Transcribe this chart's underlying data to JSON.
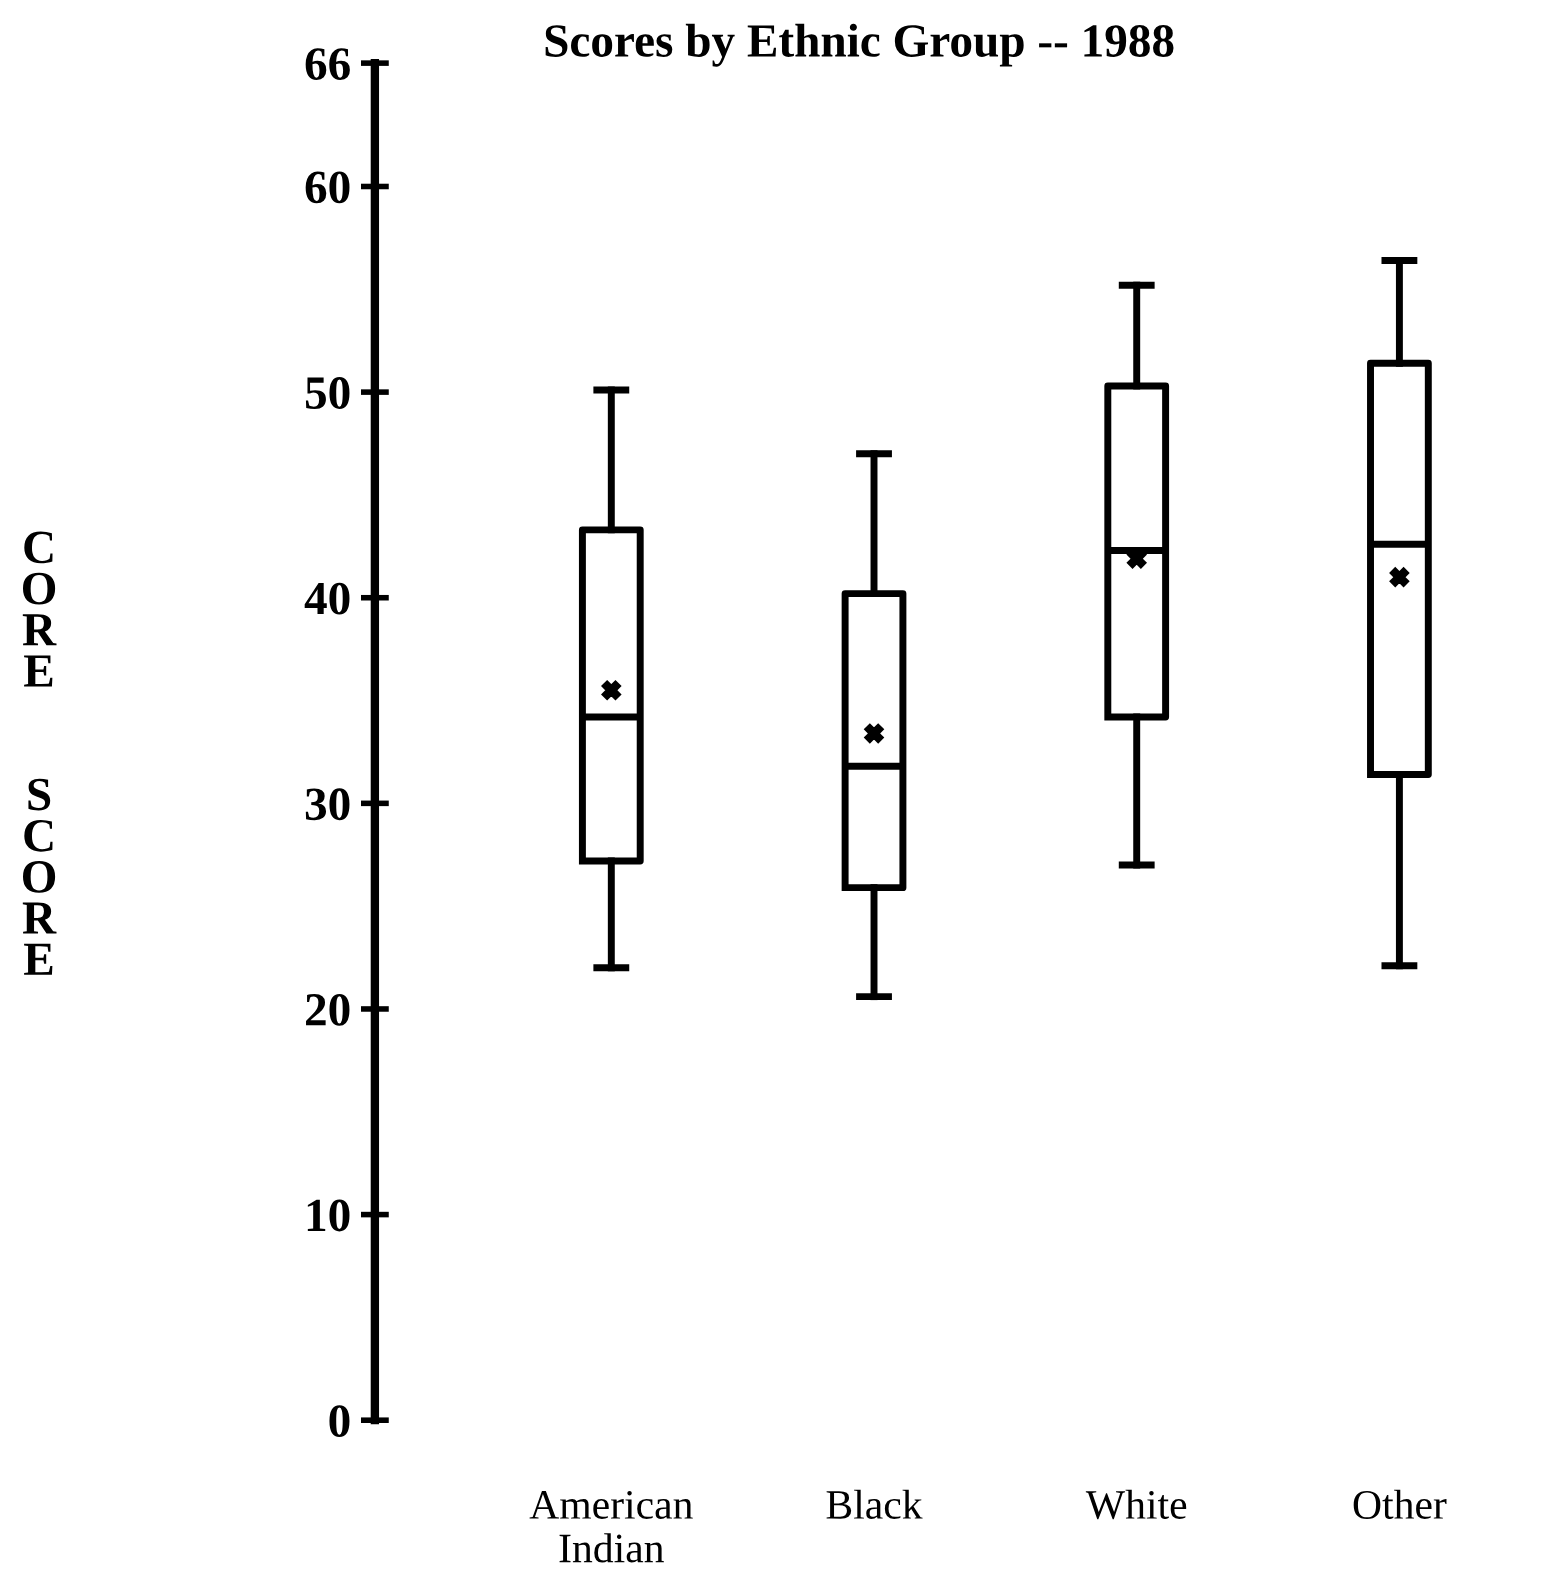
{
  "chart_data": {
    "type": "box",
    "title": "Scores by Ethnic Group -- 1988",
    "ylabel": "CORE SCORE",
    "categories": [
      "American\nIndian",
      "Black",
      "White",
      "Other"
    ],
    "boxes": [
      {
        "low": 22.0,
        "q1": 27.2,
        "median": 34.2,
        "q3": 43.3,
        "high": 50.1,
        "mean": 35.5
      },
      {
        "low": 20.6,
        "q1": 25.9,
        "median": 31.8,
        "q3": 40.2,
        "high": 47.0,
        "mean": 33.4
      },
      {
        "low": 27.0,
        "q1": 34.2,
        "median": 42.3,
        "q3": 50.3,
        "high": 55.2,
        "mean": 41.9
      },
      {
        "low": 22.1,
        "q1": 31.4,
        "median": 42.6,
        "q3": 51.4,
        "high": 56.4,
        "mean": 41.0
      }
    ],
    "color": "#000000",
    "ylim": [
      0,
      66
    ],
    "yticks": [
      0,
      10,
      20,
      30,
      40,
      50,
      60,
      66
    ],
    "grid": false,
    "marker": "cross"
  }
}
